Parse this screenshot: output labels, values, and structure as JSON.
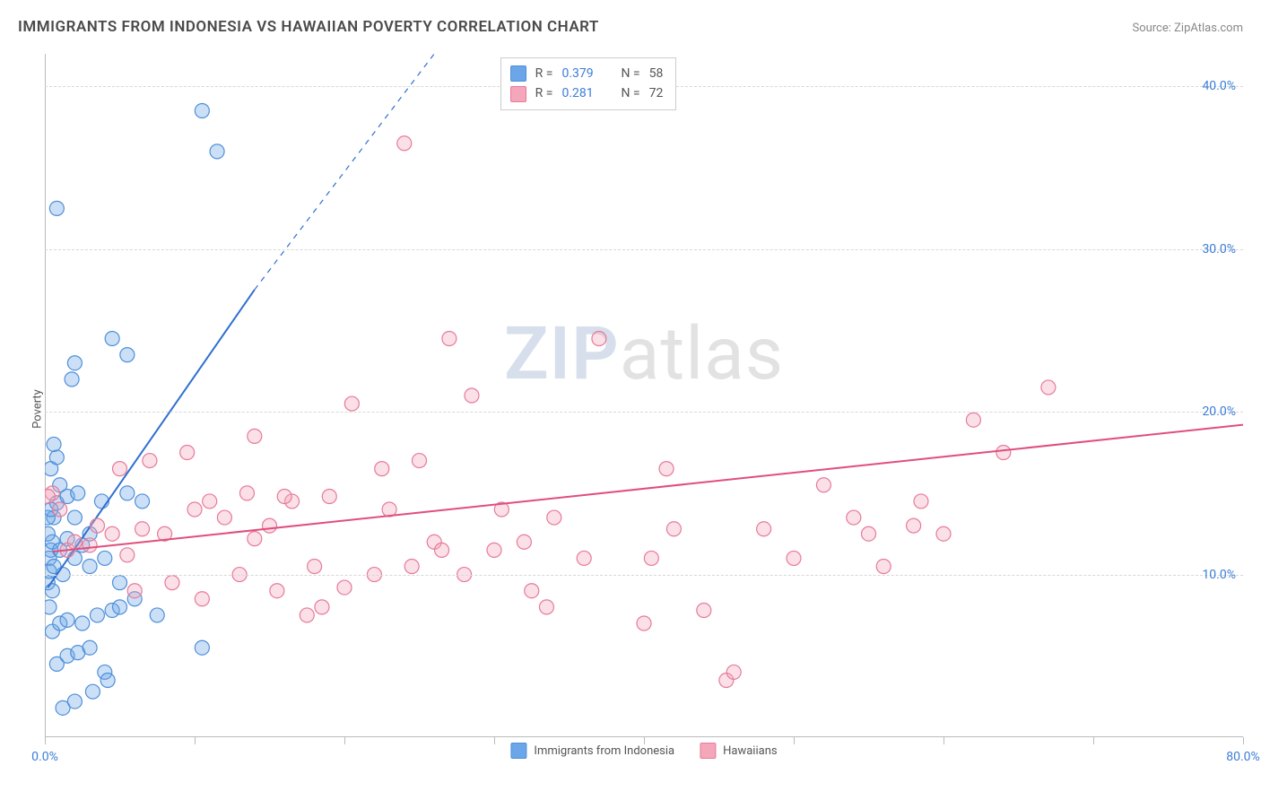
{
  "title": "IMMIGRANTS FROM INDONESIA VS HAWAIIAN POVERTY CORRELATION CHART",
  "source_prefix": "Source: ",
  "source_name": "ZipAtlas.com",
  "y_label": "Poverty",
  "watermark_part1": "ZIP",
  "watermark_part2": "atlas",
  "chart": {
    "type": "scatter",
    "background_color": "#ffffff",
    "grid_color": "#d8d8d8",
    "axis_color": "#bbbbbb",
    "tick_label_color": "#3b7dd8",
    "tick_fontsize": 14,
    "xlim": [
      0,
      80
    ],
    "ylim": [
      0,
      42
    ],
    "x_ticks": [
      0,
      10,
      20,
      30,
      40,
      50,
      60,
      70,
      80
    ],
    "x_tick_labels": {
      "0": "0.0%",
      "80": "80.0%"
    },
    "y_ticks": [
      10,
      20,
      30,
      40
    ],
    "y_tick_labels": {
      "10": "10.0%",
      "20": "20.0%",
      "30": "30.0%",
      "40": "40.0%"
    },
    "marker_radius": 8,
    "marker_fill_opacity": 0.35,
    "marker_stroke_width": 1.2,
    "trend_line_width": 2.0,
    "series": [
      {
        "id": "immigrants",
        "label": "Immigrants from Indonesia",
        "color": "#6aa6e8",
        "stroke": "#4f8fd9",
        "trend_color": "#2f6fd0",
        "r_value": 0.379,
        "n_value": 58,
        "trend_x": [
          0.2,
          14
        ],
        "trend_y": [
          9.2,
          27.5
        ],
        "trend_dashed_x": [
          14,
          26
        ],
        "trend_dashed_y": [
          27.5,
          42
        ],
        "points": [
          [
            0.2,
            9.5
          ],
          [
            0.3,
            10.2
          ],
          [
            0.4,
            11.5
          ],
          [
            0.5,
            12.0
          ],
          [
            0.6,
            13.5
          ],
          [
            0.8,
            14.4
          ],
          [
            0.3,
            8.0
          ],
          [
            1.0,
            11.5
          ],
          [
            1.2,
            10.0
          ],
          [
            1.5,
            12.2
          ],
          [
            1.0,
            15.5
          ],
          [
            2.0,
            11.0
          ],
          [
            2.0,
            13.5
          ],
          [
            2.5,
            11.8
          ],
          [
            3.0,
            12.5
          ],
          [
            3.0,
            10.5
          ],
          [
            4.0,
            11.0
          ],
          [
            5.0,
            9.5
          ],
          [
            0.4,
            16.5
          ],
          [
            0.8,
            17.2
          ],
          [
            0.6,
            18.0
          ],
          [
            1.5,
            14.8
          ],
          [
            2.2,
            15.0
          ],
          [
            3.8,
            14.5
          ],
          [
            5.5,
            15.0
          ],
          [
            6.5,
            14.5
          ],
          [
            0.5,
            6.5
          ],
          [
            1.0,
            7.0
          ],
          [
            1.5,
            7.2
          ],
          [
            2.5,
            7.0
          ],
          [
            3.5,
            7.5
          ],
          [
            4.5,
            7.8
          ],
          [
            0.8,
            4.5
          ],
          [
            1.5,
            5.0
          ],
          [
            2.2,
            5.2
          ],
          [
            3.0,
            5.5
          ],
          [
            4.0,
            4.0
          ],
          [
            5.0,
            8.0
          ],
          [
            6.0,
            8.5
          ],
          [
            7.5,
            7.5
          ],
          [
            2.0,
            23.0
          ],
          [
            1.8,
            22.0
          ],
          [
            4.5,
            24.5
          ],
          [
            5.5,
            23.5
          ],
          [
            0.8,
            32.5
          ],
          [
            10.5,
            38.5
          ],
          [
            11.5,
            36.0
          ],
          [
            1.2,
            1.8
          ],
          [
            2.0,
            2.2
          ],
          [
            3.2,
            2.8
          ],
          [
            4.2,
            3.5
          ],
          [
            10.5,
            5.5
          ],
          [
            0.2,
            13.5
          ],
          [
            0.4,
            14.0
          ],
          [
            0.3,
            11.0
          ],
          [
            0.6,
            10.5
          ],
          [
            0.5,
            9.0
          ],
          [
            0.2,
            12.5
          ]
        ]
      },
      {
        "id": "hawaiians",
        "label": "Hawaiians",
        "color": "#f4a6bb",
        "stroke": "#e77a99",
        "trend_color": "#e04e7e",
        "r_value": 0.281,
        "n_value": 72,
        "trend_x": [
          0.5,
          80
        ],
        "trend_y": [
          11.4,
          19.2
        ],
        "points": [
          [
            1.5,
            11.5
          ],
          [
            2.0,
            12.0
          ],
          [
            3.0,
            11.8
          ],
          [
            3.5,
            13.0
          ],
          [
            4.5,
            12.5
          ],
          [
            5.5,
            11.2
          ],
          [
            6.5,
            12.8
          ],
          [
            8.0,
            12.5
          ],
          [
            10.0,
            14.0
          ],
          [
            12.0,
            13.5
          ],
          [
            14.0,
            12.2
          ],
          [
            15.0,
            13.0
          ],
          [
            16.5,
            14.5
          ],
          [
            6.0,
            9.0
          ],
          [
            8.5,
            9.5
          ],
          [
            10.5,
            8.5
          ],
          [
            13.0,
            10.0
          ],
          [
            15.5,
            9.0
          ],
          [
            18.0,
            10.5
          ],
          [
            5.0,
            16.5
          ],
          [
            7.0,
            17.0
          ],
          [
            9.5,
            17.5
          ],
          [
            11.0,
            14.5
          ],
          [
            13.5,
            15.0
          ],
          [
            16.0,
            14.8
          ],
          [
            18.5,
            8.0
          ],
          [
            20.0,
            9.2
          ],
          [
            22.0,
            10.0
          ],
          [
            20.5,
            20.5
          ],
          [
            24.0,
            36.5
          ],
          [
            14.0,
            18.5
          ],
          [
            22.5,
            16.5
          ],
          [
            25.0,
            17.0
          ],
          [
            27.0,
            24.5
          ],
          [
            28.5,
            21.0
          ],
          [
            28.0,
            10.0
          ],
          [
            30.0,
            11.5
          ],
          [
            30.5,
            14.0
          ],
          [
            32.0,
            12.0
          ],
          [
            32.5,
            9.0
          ],
          [
            33.5,
            8.0
          ],
          [
            37.0,
            24.5
          ],
          [
            40.0,
            7.0
          ],
          [
            40.5,
            11.0
          ],
          [
            41.5,
            16.5
          ],
          [
            42.0,
            12.8
          ],
          [
            45.5,
            3.5
          ],
          [
            50.0,
            11.0
          ],
          [
            52.0,
            15.5
          ],
          [
            55.0,
            12.5
          ],
          [
            56.0,
            10.5
          ],
          [
            58.0,
            13.0
          ],
          [
            60.0,
            12.5
          ],
          [
            62.0,
            19.5
          ],
          [
            67.0,
            21.5
          ],
          [
            0.5,
            15.0
          ],
          [
            1.0,
            14.0
          ],
          [
            0.2,
            14.8
          ],
          [
            26.0,
            12.0
          ],
          [
            24.5,
            10.5
          ],
          [
            23.0,
            14.0
          ],
          [
            17.5,
            7.5
          ],
          [
            19.0,
            14.8
          ],
          [
            26.5,
            11.5
          ],
          [
            34.0,
            13.5
          ],
          [
            36.0,
            11.0
          ],
          [
            44.0,
            7.8
          ],
          [
            46.0,
            4.0
          ],
          [
            48.0,
            12.8
          ],
          [
            54.0,
            13.5
          ],
          [
            58.5,
            14.5
          ],
          [
            64.0,
            17.5
          ]
        ]
      }
    ]
  },
  "stats_labels": {
    "r": "R =",
    "n": "N ="
  }
}
